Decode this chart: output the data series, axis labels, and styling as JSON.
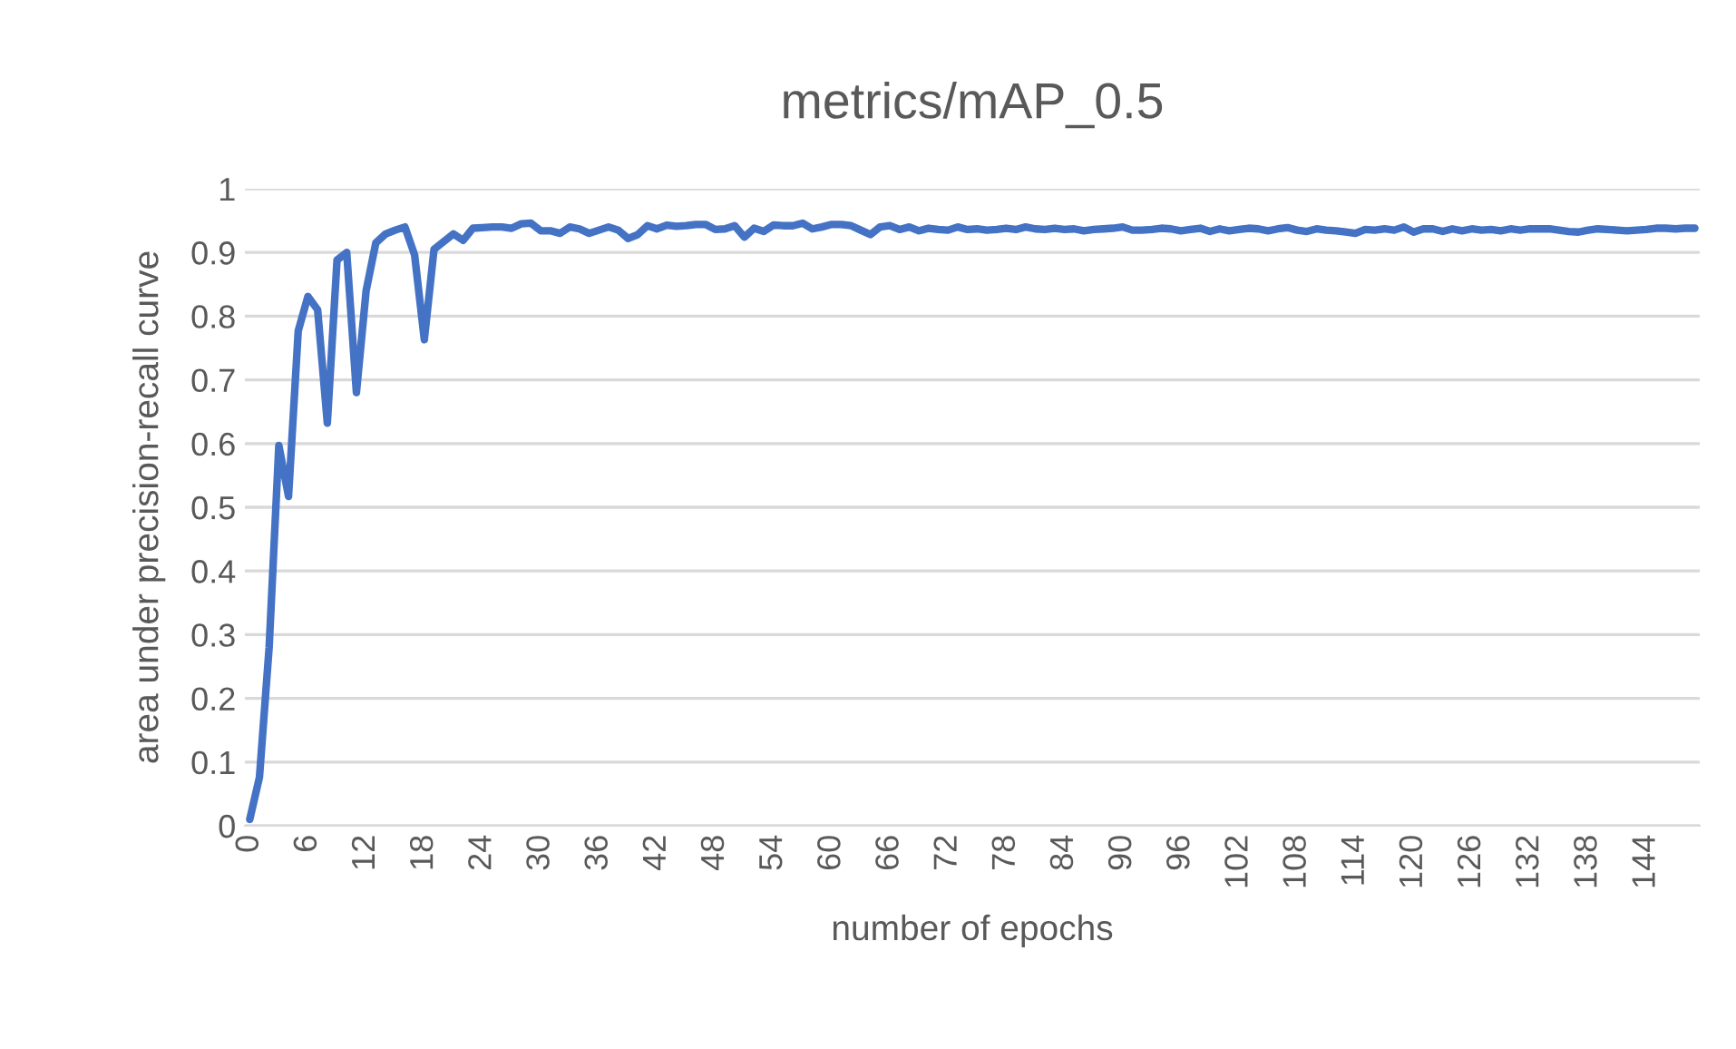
{
  "chart_data": {
    "type": "line",
    "title": "metrics/mAP_0.5",
    "xlabel": "number of epochs",
    "ylabel": "area under precision-recall curve",
    "categories": [
      "0",
      null,
      null,
      null,
      null,
      null,
      "6",
      null,
      null,
      null,
      null,
      null,
      "12",
      null,
      null,
      null,
      null,
      null,
      "18",
      null,
      null,
      null,
      null,
      null,
      "24",
      null,
      null,
      null,
      null,
      null,
      "30",
      null,
      null,
      null,
      null,
      null,
      "36",
      null,
      null,
      null,
      null,
      null,
      "42",
      null,
      null,
      null,
      null,
      null,
      "48",
      null,
      null,
      null,
      null,
      null,
      "54",
      null,
      null,
      null,
      null,
      null,
      "60",
      null,
      null,
      null,
      null,
      null,
      "66",
      null,
      null,
      null,
      null,
      null,
      "72",
      null,
      null,
      null,
      null,
      null,
      "78",
      null,
      null,
      null,
      null,
      null,
      "84",
      null,
      null,
      null,
      null,
      null,
      "90",
      null,
      null,
      null,
      null,
      null,
      "96",
      null,
      null,
      null,
      null,
      null,
      "102",
      null,
      null,
      null,
      null,
      null,
      "108",
      null,
      null,
      null,
      null,
      null,
      "114",
      null,
      null,
      null,
      null,
      null,
      "120",
      null,
      null,
      null,
      null,
      null,
      "126",
      null,
      null,
      null,
      null,
      null,
      "132",
      null,
      null,
      null,
      null,
      null,
      "138",
      null,
      null,
      null,
      null,
      null,
      "144",
      null,
      null,
      null,
      null,
      null
    ],
    "series": [
      {
        "color": "#4472c4",
        "values": [
          0.01,
          0.076,
          0.28,
          0.597,
          0.517,
          0.777,
          0.831,
          0.81,
          0.632,
          0.888,
          0.9,
          0.68,
          0.84,
          0.915,
          0.929,
          0.935,
          0.94,
          0.896,
          0.763,
          0.905,
          0.917,
          0.929,
          0.919,
          0.938,
          0.939,
          0.94,
          0.94,
          0.938,
          0.945,
          0.946,
          0.934,
          0.934,
          0.93,
          0.94,
          0.937,
          0.93,
          0.935,
          0.94,
          0.935,
          0.922,
          0.928,
          0.942,
          0.937,
          0.943,
          0.941,
          0.942,
          0.944,
          0.944,
          0.936,
          0.937,
          0.942,
          0.924,
          0.938,
          0.933,
          0.943,
          0.942,
          0.942,
          0.946,
          0.937,
          0.94,
          0.944,
          0.944,
          0.942,
          0.935,
          0.928,
          0.94,
          0.942,
          0.936,
          0.94,
          0.934,
          0.938,
          0.936,
          0.935,
          0.94,
          0.936,
          0.937,
          0.935,
          0.936,
          0.938,
          0.936,
          0.94,
          0.937,
          0.936,
          0.938,
          0.936,
          0.937,
          0.934,
          0.936,
          0.937,
          0.938,
          0.94,
          0.935,
          0.935,
          0.936,
          0.938,
          0.937,
          0.934,
          0.936,
          0.938,
          0.933,
          0.937,
          0.934,
          0.936,
          0.938,
          0.937,
          0.934,
          0.937,
          0.939,
          0.935,
          0.933,
          0.937,
          0.935,
          0.934,
          0.932,
          0.93,
          0.936,
          0.935,
          0.937,
          0.935,
          0.94,
          0.932,
          0.937,
          0.937,
          0.933,
          0.937,
          0.934,
          0.937,
          0.935,
          0.936,
          0.934,
          0.937,
          0.935,
          0.937,
          0.937,
          0.937,
          0.935,
          0.933,
          0.932,
          0.935,
          0.937,
          0.936,
          0.935,
          0.934,
          0.935,
          0.936,
          0.938,
          0.938,
          0.937,
          0.938,
          0.938
        ]
      }
    ],
    "ylim": [
      0,
      1
    ],
    "yticks": [
      0,
      0.1,
      0.2,
      0.3,
      0.4,
      0.5,
      0.6,
      0.7,
      0.8,
      0.9,
      1
    ],
    "grid": "y",
    "marker": "none",
    "line_style": "solid"
  }
}
